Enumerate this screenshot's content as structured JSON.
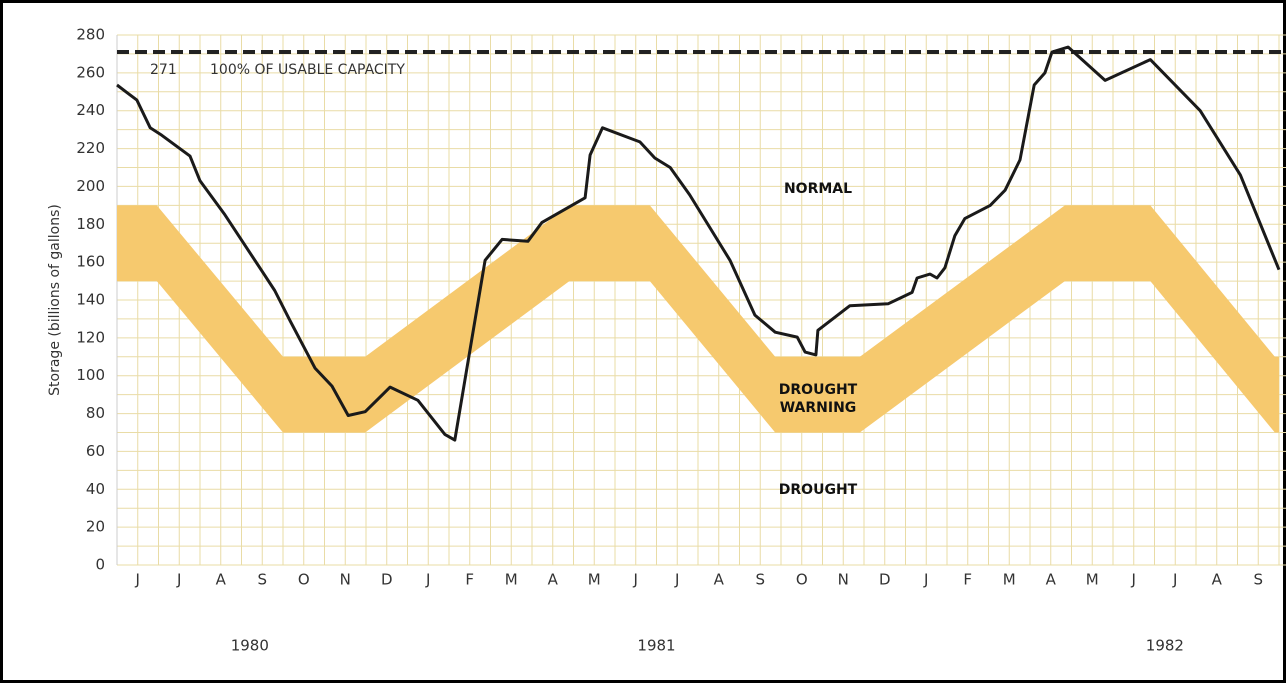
{
  "chart_data": {
    "type": "line",
    "y_label": "Storage (billions of gallons)",
    "ylim": [
      0,
      280
    ],
    "yticks": [
      0,
      20,
      40,
      60,
      80,
      100,
      120,
      140,
      160,
      180,
      200,
      220,
      240,
      260,
      280
    ],
    "y_minor_ticks": [
      10,
      30,
      50,
      70,
      90,
      110,
      130,
      150,
      170,
      190,
      210,
      230,
      250,
      270
    ],
    "xlim": [
      0,
      28
    ],
    "categories": [
      "J",
      "J",
      "A",
      "S",
      "O",
      "N",
      "D",
      "J",
      "F",
      "M",
      "A",
      "M",
      "J",
      "J",
      "A",
      "S",
      "O",
      "N",
      "D",
      "J",
      "F",
      "M",
      "A",
      "M",
      "J",
      "J",
      "A",
      "S"
    ],
    "year_labels": [
      "1980",
      "1981",
      "1982"
    ],
    "capacity": {
      "value": 271,
      "text": "100% OF USABLE CAPACITY",
      "color": "#222222"
    },
    "zone_labels": {
      "normal": "NORMAL",
      "warning": [
        "DROUGHT",
        "WARNING"
      ],
      "drought": "DROUGHT"
    },
    "band": {
      "color": "#f6c96e",
      "x": [
        0,
        0.96,
        4.0,
        5.98,
        10.9,
        12.84,
        15.86,
        17.9,
        22.84,
        24.9,
        27.9,
        28
      ],
      "upper": [
        190,
        190,
        110,
        110,
        190,
        190,
        110,
        110,
        190,
        190,
        110,
        110
      ],
      "lower": [
        150,
        150,
        70,
        70,
        150,
        150,
        70,
        70,
        150,
        150,
        70,
        70
      ]
    },
    "line": {
      "color": "#1a1a1a",
      "x": [
        0,
        0.48,
        0.8,
        1.08,
        1.76,
        2.0,
        2.6,
        3.5,
        3.8,
        4.17,
        4.77,
        5.18,
        5.57,
        5.98,
        6.58,
        7.25,
        7.9,
        8.14,
        8.87,
        9.28,
        9.9,
        10.24,
        11.28,
        11.4,
        11.7,
        12.6,
        12.96,
        13.33,
        13.8,
        14.77,
        15.37,
        15.86,
        16.39,
        16.58,
        16.84,
        16.89,
        17.66,
        18.58,
        18.87,
        19.16,
        19.28,
        19.59,
        19.76,
        19.95,
        20.19,
        20.43,
        21.04,
        21.4,
        21.76,
        22.1,
        22.36,
        22.53,
        22.92,
        23.81,
        24.9,
        26.1,
        27.07,
        28.0
      ],
      "values": [
        253.6,
        245.6,
        231,
        227,
        216,
        203,
        185,
        155,
        145,
        129,
        104,
        94.5,
        79,
        81,
        94,
        87,
        69,
        66,
        161,
        172,
        171,
        181,
        194,
        216.6,
        231,
        223.5,
        215,
        210,
        195.5,
        161,
        132,
        123,
        120.4,
        112.5,
        111,
        124,
        137,
        138,
        141,
        144,
        151.6,
        153.7,
        151.6,
        157,
        174,
        183,
        190,
        198,
        214,
        253.6,
        260,
        271,
        273.6,
        256,
        267,
        240,
        206,
        156
      ]
    }
  }
}
